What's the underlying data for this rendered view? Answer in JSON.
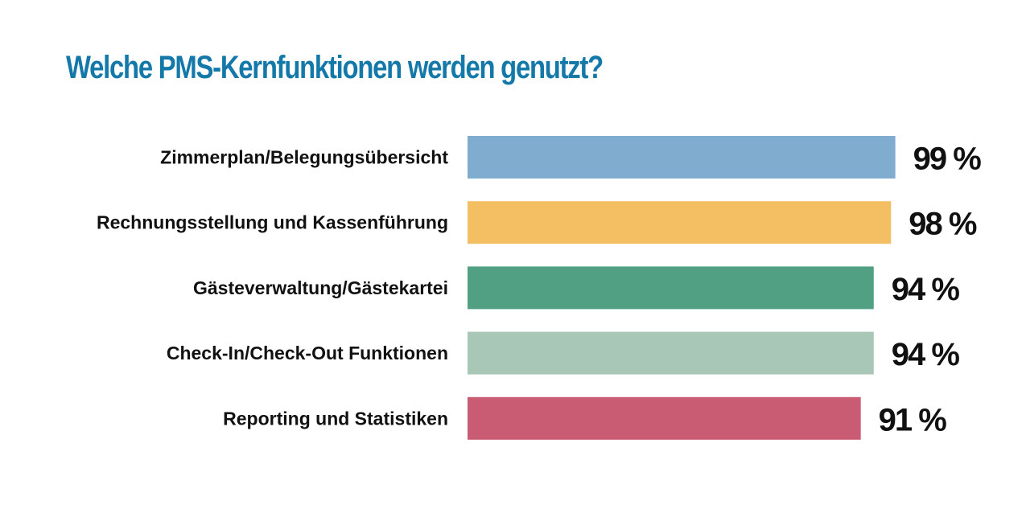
{
  "chart_data": {
    "type": "bar",
    "orientation": "horizontal",
    "title": "Welche PMS-Kernfunktionen werden genutzt?",
    "categories": [
      "Zimmerplan/Belegungsübersicht",
      "Rechnungsstellung und Kassenführung",
      "Gästeverwaltung/Gästekartei",
      "Check-In/Check-Out Funktionen",
      "Reporting und Statistiken"
    ],
    "values": [
      99,
      98,
      94,
      94,
      91
    ],
    "value_labels": [
      "99 %",
      "98 %",
      "94 %",
      "94 %",
      "91 %"
    ],
    "colors": [
      "#80acd0",
      "#f4bf63",
      "#52a084",
      "#a9c7b6",
      "#c95c72"
    ],
    "xlim": [
      0,
      100
    ],
    "grid": false,
    "legend": "none"
  }
}
